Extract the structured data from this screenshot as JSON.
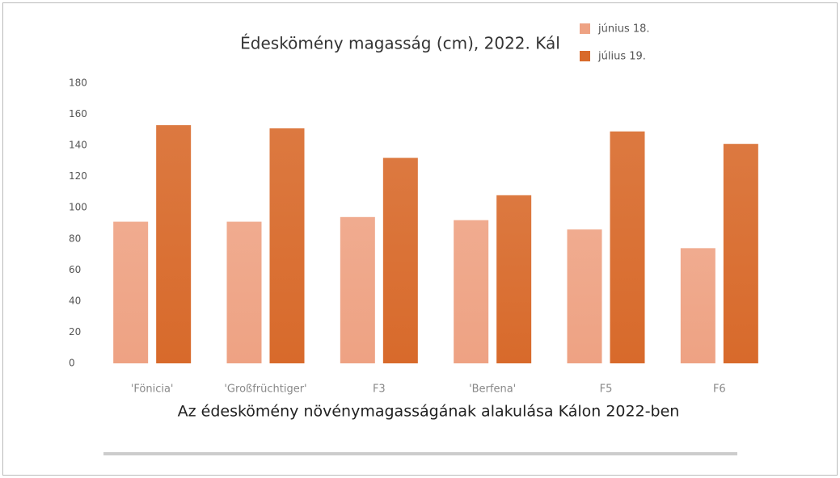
{
  "chart_data": {
    "type": "bar",
    "title": "Édeskömény magasság (cm), 2022. Kál",
    "categories": [
      "'Fönicia'",
      "'Großfrüchtiger'",
      "F3",
      "'Berfena'",
      "F5",
      "F6"
    ],
    "series": [
      {
        "name": "június 18.",
        "color": "#eea283",
        "values": [
          91,
          91,
          94,
          92,
          86,
          74
        ]
      },
      {
        "name": "július 19.",
        "color": "#d86a2b",
        "values": [
          153,
          151,
          132,
          108,
          149,
          141
        ]
      }
    ],
    "ylim": [
      0,
      180
    ],
    "yticks": [
      0,
      20,
      40,
      60,
      80,
      100,
      120,
      140,
      160,
      180
    ],
    "grid": false,
    "legend": "top-right"
  },
  "caption": "Az édeskömény növénymagasságának alakulása Kálon 2022-ben"
}
